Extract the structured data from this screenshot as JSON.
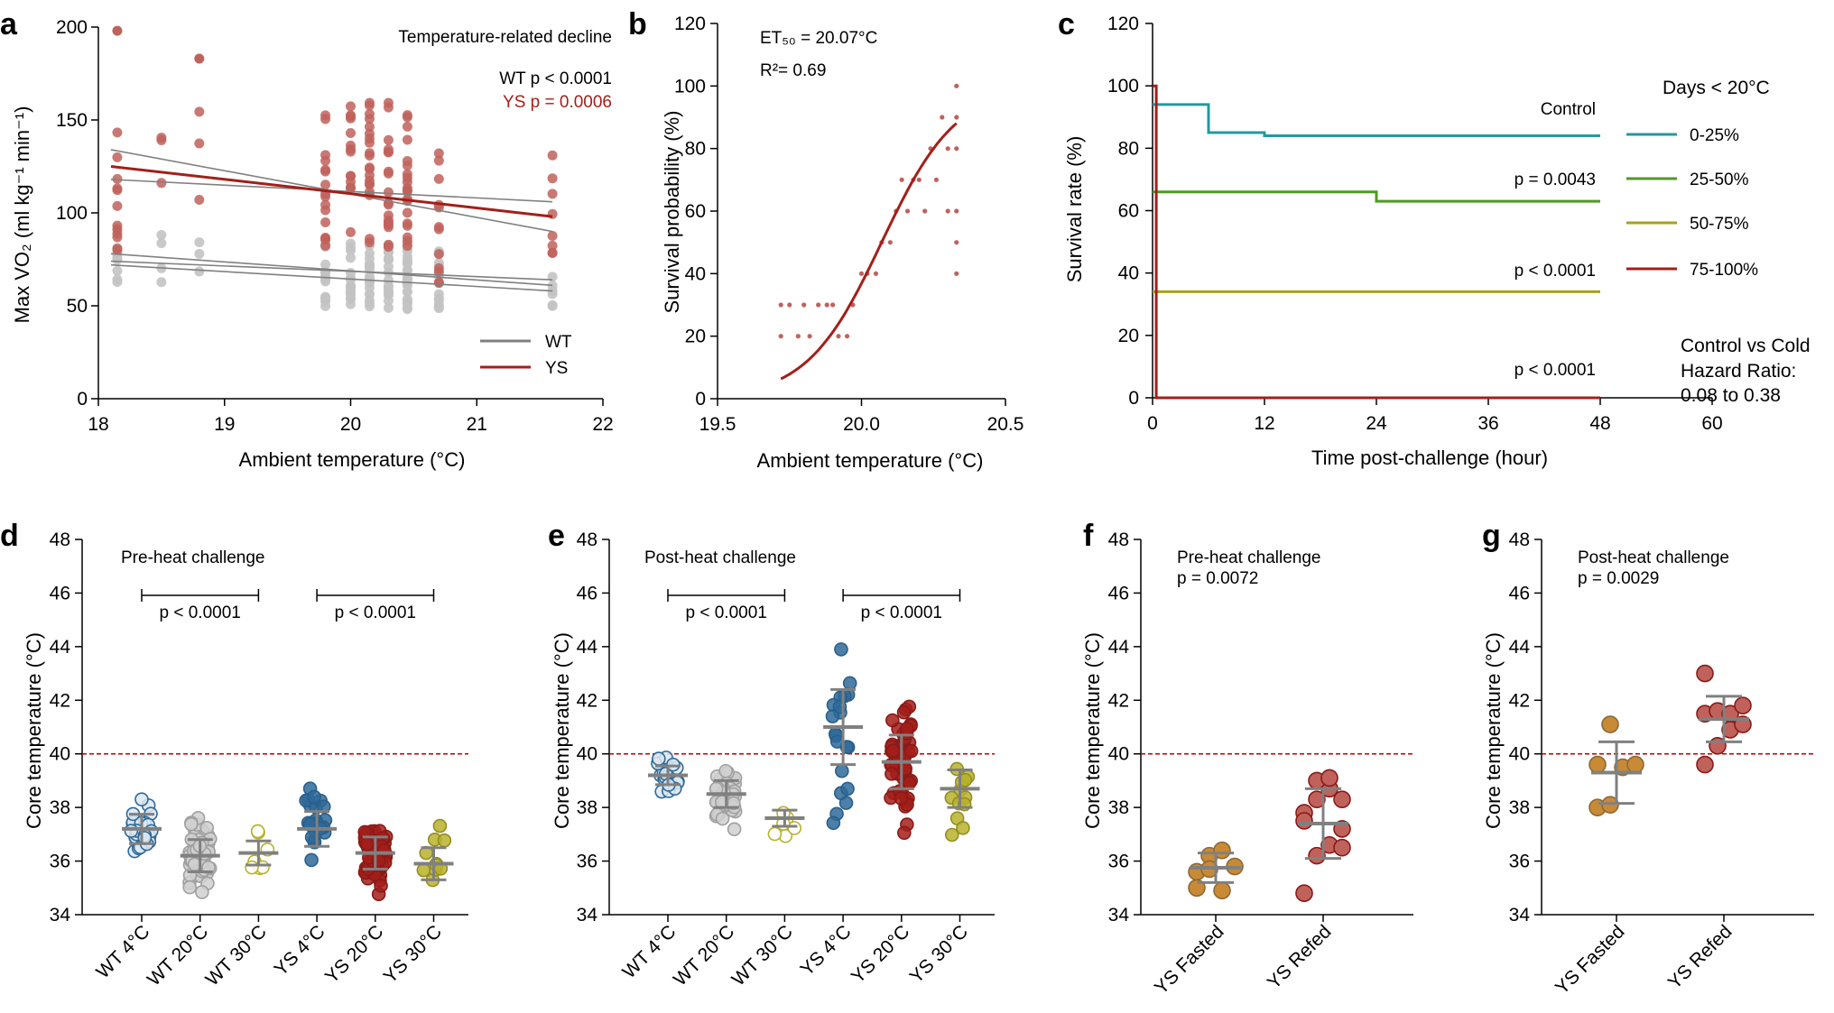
{
  "colors": {
    "wt": "#808080",
    "wt_light": "#c3c3c3",
    "ys": "#a31f1a",
    "ys_light": "#c0625c",
    "blue": "#2e6a99",
    "olive": "#b8b22c",
    "orange": "#c98a35",
    "teal": "#24999e",
    "green": "#4e9a24",
    "mustard": "#a7a11c",
    "darkred": "#a31f1a",
    "refline": "#c00000"
  },
  "chart_data": [
    {
      "panel": "a",
      "type": "scatter",
      "letter": "a",
      "title": "Temperature-related decline",
      "stat_wt": "WT p < 0.0001",
      "stat_ys": "YS  p = 0.0006",
      "xlabel": "Ambient temperature (°C)",
      "ylabel": "Max VO₂ (ml kg⁻¹ min⁻¹)",
      "xlim": [
        18,
        22
      ],
      "ylim": [
        0,
        200
      ],
      "xticks": [
        18,
        19,
        20,
        21,
        22
      ],
      "yticks": [
        0,
        50,
        100,
        150,
        200
      ],
      "legend": [
        "WT",
        "YS"
      ],
      "wt_x_groups": [
        18.15,
        18.5,
        18.8,
        19.8,
        20.0,
        20.15,
        20.3,
        20.45,
        20.7,
        21.6
      ],
      "ys_x_groups": [
        18.15,
        18.5,
        18.8,
        19.8,
        20.0,
        20.15,
        20.3,
        20.45,
        20.7,
        21.6
      ],
      "wt_fit_lines": [
        [
          18.1,
          78,
          21.6,
          61
        ],
        [
          18.1,
          74,
          21.6,
          64
        ],
        [
          18.1,
          72,
          21.6,
          58
        ],
        [
          18.1,
          134,
          21.6,
          90
        ],
        [
          18.1,
          118,
          21.6,
          106
        ]
      ],
      "ys_fit": [
        18.1,
        125,
        21.6,
        98
      ]
    },
    {
      "panel": "b",
      "type": "scatter",
      "letter": "b",
      "annot_et": "ET₅₀ = 20.07°C",
      "annot_r2": "R²= 0.69",
      "xlabel": "Ambient temperature (°C)",
      "ylabel": "Survival probability (%)",
      "xlim": [
        19.5,
        20.5
      ],
      "ylim": [
        0,
        120
      ],
      "xticks": [
        "19.5",
        "20.0",
        "20.5"
      ],
      "yticks": [
        0,
        20,
        40,
        60,
        80,
        100,
        120
      ],
      "points": [
        [
          19.72,
          30
        ],
        [
          19.72,
          20
        ],
        [
          19.75,
          30
        ],
        [
          19.78,
          20
        ],
        [
          19.8,
          30
        ],
        [
          19.82,
          20
        ],
        [
          19.85,
          30
        ],
        [
          19.88,
          30
        ],
        [
          19.9,
          30
        ],
        [
          19.92,
          20
        ],
        [
          19.95,
          20
        ],
        [
          19.97,
          30
        ],
        [
          20.0,
          40
        ],
        [
          20.02,
          40
        ],
        [
          20.05,
          40
        ],
        [
          20.07,
          50
        ],
        [
          20.1,
          50
        ],
        [
          20.12,
          60
        ],
        [
          20.14,
          70
        ],
        [
          20.16,
          60
        ],
        [
          20.18,
          70
        ],
        [
          20.2,
          70
        ],
        [
          20.22,
          60
        ],
        [
          20.24,
          80
        ],
        [
          20.26,
          70
        ],
        [
          20.28,
          90
        ],
        [
          20.3,
          80
        ],
        [
          20.3,
          60
        ],
        [
          20.33,
          100
        ],
        [
          20.33,
          90
        ],
        [
          20.33,
          80
        ],
        [
          20.33,
          60
        ],
        [
          20.33,
          50
        ],
        [
          20.33,
          40
        ]
      ]
    },
    {
      "panel": "c",
      "type": "line",
      "letter": "c",
      "xlabel": "Time post-challenge (hour)",
      "ylabel": "Survival rate (%)",
      "xlim": [
        0,
        60
      ],
      "ylim": [
        0,
        120
      ],
      "xticks": [
        0,
        12,
        24,
        36,
        48,
        60
      ],
      "yticks": [
        0,
        20,
        40,
        60,
        80,
        100,
        120
      ],
      "legend_title": "Days < 20°C",
      "series": [
        {
          "name": "0-25%",
          "steps": [
            [
              0,
              94
            ],
            [
              6,
              94
            ],
            [
              6,
              85
            ],
            [
              12,
              85
            ],
            [
              12,
              84
            ],
            [
              48,
              84
            ]
          ],
          "label": "Control"
        },
        {
          "name": "25-50%",
          "steps": [
            [
              0,
              66
            ],
            [
              24,
              66
            ],
            [
              24,
              63
            ],
            [
              48,
              63
            ]
          ],
          "label": "p = 0.0043"
        },
        {
          "name": "50-75%",
          "steps": [
            [
              0,
              34
            ],
            [
              48,
              34
            ]
          ],
          "label": "p < 0.0001"
        },
        {
          "name": "75-100%",
          "steps": [
            [
              0,
              100
            ],
            [
              0.4,
              100
            ],
            [
              0.4,
              0
            ],
            [
              48,
              0
            ]
          ],
          "label": "p < 0.0001"
        }
      ],
      "hazard": [
        "Control vs Cold",
        "Hazard Ratio:",
        "0.08 to 0.38"
      ]
    },
    {
      "panel": "d",
      "type": "scatter",
      "letter": "d",
      "title": "Pre-heat challenge",
      "ylabel": "Core temperature (°C)",
      "ylim": [
        34,
        48
      ],
      "yticks": [
        34,
        36,
        38,
        40,
        42,
        44,
        46,
        48
      ],
      "refline": 40,
      "categories": [
        "WT 4°C",
        "WT 20°C",
        "WT 30°C",
        "YS 4°C",
        "YS 20°C",
        "YS 30°C"
      ],
      "means": [
        37.2,
        36.2,
        36.3,
        37.2,
        36.3,
        35.9
      ],
      "sds": [
        0.55,
        0.6,
        0.45,
        0.65,
        0.6,
        0.6
      ],
      "brackets": [
        {
          "from": 0,
          "to": 2,
          "label": "p < 0.0001"
        },
        {
          "from": 3,
          "to": 5,
          "label": "p < 0.0001"
        }
      ]
    },
    {
      "panel": "e",
      "type": "scatter",
      "letter": "e",
      "title": "Post-heat challenge",
      "ylabel": "Core temperature (°C)",
      "ylim": [
        34,
        48
      ],
      "yticks": [
        34,
        36,
        38,
        40,
        42,
        44,
        46,
        48
      ],
      "refline": 40,
      "categories": [
        "WT 4°C",
        "WT 20°C",
        "WT 30°C",
        "YS 4°C",
        "YS 20°C",
        "YS 30°C"
      ],
      "means": [
        39.2,
        38.5,
        37.6,
        41.0,
        39.7,
        38.7
      ],
      "sds": [
        0.35,
        0.5,
        0.3,
        1.4,
        1.0,
        0.7
      ],
      "brackets": [
        {
          "from": 0,
          "to": 2,
          "label": "p < 0.0001"
        },
        {
          "from": 3,
          "to": 5,
          "label": "p < 0.0001"
        }
      ]
    },
    {
      "panel": "f",
      "type": "scatter",
      "letter": "f",
      "title": "Pre-heat challenge",
      "pval": "p = 0.0072",
      "ylabel": "Core temperature (°C)",
      "ylim": [
        34,
        48
      ],
      "yticks": [
        34,
        36,
        38,
        40,
        42,
        44,
        46,
        48
      ],
      "refline": 40,
      "categories": [
        "YS Fasted",
        "YS Refed"
      ],
      "means": [
        35.75,
        37.4
      ],
      "sds": [
        0.55,
        1.3
      ],
      "points": [
        [
          35.0,
          36.2,
          36.4,
          35.8,
          35.6,
          35.7,
          34.9
        ],
        [
          34.8,
          36.2,
          36.6,
          37.2,
          37.8,
          38.3,
          38.7,
          38.3,
          37.5,
          39.0,
          39.1,
          36.5
        ]
      ]
    },
    {
      "panel": "g",
      "type": "scatter",
      "letter": "g",
      "title": "Post-heat challenge",
      "pval": "p = 0.0029",
      "ylabel": "Core temperature (°C)",
      "ylim": [
        34,
        48
      ],
      "yticks": [
        34,
        36,
        38,
        40,
        42,
        44,
        46,
        48
      ],
      "refline": 40,
      "categories": [
        "YS Fasted",
        "YS Refed"
      ],
      "means": [
        39.3,
        41.3
      ],
      "sds": [
        1.15,
        0.85
      ],
      "points": [
        [
          38.0,
          38.1,
          39.5,
          39.6,
          39.6,
          41.1
        ],
        [
          39.6,
          40.3,
          40.9,
          41.1,
          41.5,
          41.6,
          41.5,
          41.8,
          43.0
        ]
      ]
    }
  ]
}
